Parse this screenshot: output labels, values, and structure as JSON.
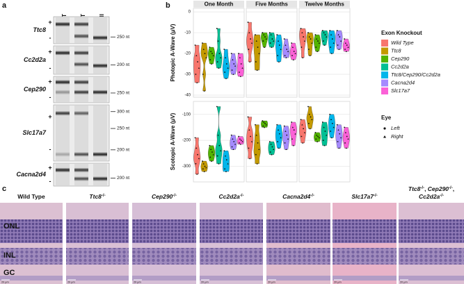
{
  "panel_labels": [
    "a",
    "b",
    "c"
  ],
  "gel": {
    "lanes": [
      "WT",
      "HET",
      "Null"
    ],
    "rows": [
      {
        "gene": "Ttc8",
        "plus": "+",
        "minus": "-",
        "markers": [
          "250 nt"
        ]
      },
      {
        "gene": "Cc2d2a",
        "plus": "+",
        "minus": "-",
        "markers": [
          "200 nt"
        ]
      },
      {
        "gene": "Cep290",
        "plus": "+",
        "minus": "-",
        "markers": [
          "250 nt"
        ]
      },
      {
        "gene": "Slc17a7",
        "plus": "+",
        "minus": "-",
        "markers": [
          "300 nt",
          "250 nt",
          "200 nt"
        ]
      },
      {
        "gene": "Cacna2d4",
        "plus": "+",
        "minus": "-",
        "markers": [
          "200 nt"
        ]
      }
    ]
  },
  "chart_data": {
    "type": "violin",
    "columns": [
      "One Month",
      "Five Months",
      "Twelve Months"
    ],
    "legend_title": "Exon Knockout",
    "groups": [
      {
        "name": "Wild Type",
        "color": "#F8766D"
      },
      {
        "name": "Ttc8",
        "color": "#C49A00"
      },
      {
        "name": "Cep290",
        "color": "#53B400"
      },
      {
        "name": "Cc2d2a",
        "color": "#00C094"
      },
      {
        "name": "Ttc8/Cep290/Cc2d2a",
        "color": "#00B6EB"
      },
      {
        "name": "Cacna2d4",
        "color": "#A58AFF"
      },
      {
        "name": "Slc17a7",
        "color": "#FB61D7"
      }
    ],
    "shape_legend_title": "Eye",
    "shapes": [
      "Left",
      "Right"
    ],
    "grid": true,
    "rows": [
      {
        "ylabel": "Photopic A-Wave (μV)",
        "ylim": [
          -41,
          1.7
        ],
        "yticks": [
          -40,
          -30,
          -20,
          -10,
          0
        ],
        "data": [
          [
            [
              -16,
              -21,
              -24,
              -27,
              -30,
              -34
            ],
            [
              -15,
              -18,
              -20,
              -22,
              -30,
              -38
            ],
            [
              -17,
              -19,
              -20,
              -21,
              -23,
              -25
            ],
            [
              -8,
              -14,
              -20,
              -22,
              -24,
              -27
            ],
            [
              -18,
              -22,
              -25,
              -27,
              -29,
              -32
            ],
            [
              -20,
              -23,
              -25,
              -26,
              -28,
              -30
            ],
            [
              -20,
              -22,
              -25,
              -27,
              -29,
              -31
            ]
          ],
          [
            [
              -5,
              -10,
              -13,
              -15,
              -18,
              -24
            ],
            [
              -11,
              -14,
              -17,
              -20,
              -24,
              -28
            ],
            [
              -10,
              -11,
              -12,
              -13,
              -14,
              -17
            ],
            [
              -10,
              -11,
              -13,
              -14,
              -15,
              -17
            ],
            [
              -11,
              -14,
              -16,
              -18,
              -21,
              -24
            ],
            [
              -13,
              -16,
              -18,
              -19,
              -21,
              -22
            ],
            [
              -15,
              -17,
              -19,
              -20,
              -21,
              -23
            ]
          ],
          [
            [
              -8,
              -10,
              -12,
              -14,
              -17,
              -22
            ],
            [
              -10,
              -12,
              -13,
              -15,
              -18,
              -21
            ],
            [
              -11,
              -13,
              -14,
              -15,
              -17,
              -19
            ],
            [
              -9,
              -10,
              -11,
              -12,
              -14,
              -16
            ],
            [
              -9,
              -11,
              -13,
              -15,
              -17,
              -20
            ],
            [
              -9,
              -11,
              -12,
              -14,
              -16,
              -18
            ],
            [
              -13,
              -15,
              -16,
              -17,
              -18,
              -19
            ]
          ]
        ]
      },
      {
        "ylabel": "Scotopic A-Wave (μV)",
        "ylim": [
          -360,
          -50
        ],
        "yticks": [
          -300,
          -200,
          -100
        ],
        "data": [
          [
            [
              -190,
              -230,
              -255,
              -270,
              -290,
              -330
            ],
            [
              -280,
              -290,
              -300,
              -305,
              -310,
              -320
            ],
            [
              -220,
              -235,
              -245,
              -255,
              -265,
              -280
            ],
            [
              -70,
              -180,
              -220,
              -240,
              -260,
              -290
            ],
            [
              -240,
              -260,
              -275,
              -290,
              -310,
              -320
            ],
            [
              -180,
              -195,
              -205,
              -215,
              -225,
              -235
            ],
            [
              -185,
              -195,
              -200,
              -205,
              -210,
              -215
            ]
          ],
          [
            [
              -110,
              -160,
              -185,
              -205,
              -230,
              -270
            ],
            [
              -140,
              -180,
              -210,
              -235,
              -255,
              -290
            ],
            [
              -125,
              -130,
              -135,
              -140,
              -145,
              -150
            ],
            [
              -205,
              -215,
              -225,
              -235,
              -245,
              -255
            ],
            [
              -140,
              -160,
              -175,
              -190,
              -205,
              -230
            ],
            [
              -145,
              -165,
              -180,
              -195,
              -210,
              -235
            ],
            [
              -130,
              -150,
              -160,
              -175,
              -195,
              -220
            ]
          ],
          [
            [
              -120,
              -140,
              -155,
              -170,
              -185,
              -210
            ],
            [
              -70,
              -100,
              -110,
              -120,
              -135,
              -155
            ],
            [
              -170,
              -180,
              -185,
              -190,
              -195,
              -205
            ],
            [
              -130,
              -150,
              -165,
              -180,
              -200,
              -220
            ],
            [
              -100,
              -120,
              -135,
              -150,
              -165,
              -190
            ],
            [
              -140,
              -160,
              -175,
              -190,
              -205,
              -230
            ],
            [
              -150,
              -170,
              -185,
              -195,
              -210,
              -230
            ]
          ]
        ]
      }
    ]
  },
  "histology": {
    "layers": [
      "ONL",
      "INL",
      "GC"
    ],
    "scale_bar": "20 μm",
    "panels": [
      {
        "title_lines": [
          [
            {
              "text": "Wild Type",
              "style": "plain"
            }
          ]
        ]
      },
      {
        "title_lines": [
          [
            {
              "text": "Ttc8",
              "style": "italic"
            },
            {
              "text": "-/-",
              "style": "sup"
            }
          ]
        ]
      },
      {
        "title_lines": [
          [
            {
              "text": "Cep290",
              "style": "italic"
            },
            {
              "text": "-/-",
              "style": "sup"
            }
          ]
        ]
      },
      {
        "title_lines": [
          [
            {
              "text": "Cc2d2a",
              "style": "italic"
            },
            {
              "text": "-/-",
              "style": "sup"
            }
          ]
        ]
      },
      {
        "title_lines": [
          [
            {
              "text": "Cacna2d4",
              "style": "italic"
            },
            {
              "text": "-/-",
              "style": "sup"
            }
          ]
        ]
      },
      {
        "title_lines": [
          [
            {
              "text": "Slc17a7",
              "style": "italic"
            },
            {
              "text": "-/-",
              "style": "sup"
            }
          ]
        ]
      },
      {
        "title_lines": [
          [
            {
              "text": "Ttc8",
              "style": "italic"
            },
            {
              "text": "-/-",
              "style": "sup"
            },
            {
              "text": ", ",
              "style": "plain"
            },
            {
              "text": "Cep290",
              "style": "italic"
            },
            {
              "text": "-/-",
              "style": "sup"
            },
            {
              "text": ",",
              "style": "plain"
            }
          ],
          [
            {
              "text": "Cc2d2a",
              "style": "italic"
            },
            {
              "text": "-/-",
              "style": "sup"
            }
          ]
        ]
      }
    ]
  }
}
